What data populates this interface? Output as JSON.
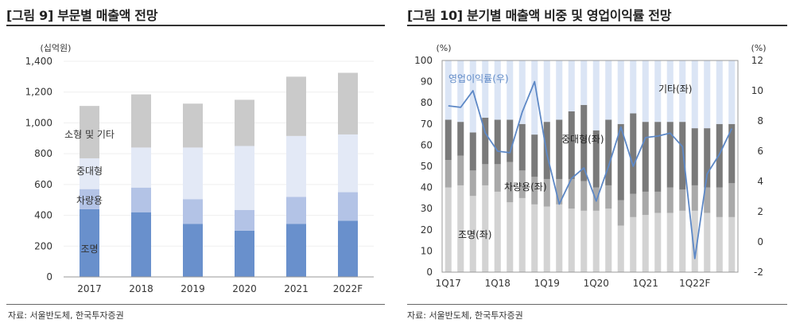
{
  "left_panel": {
    "title": "[그림 9] 부문별 매출액 전망",
    "source": "자료: 서울반도체, 한국투자증권"
  },
  "right_panel": {
    "title": "[그림 10] 분기별 매출액 비중 및 영업이익률 전망",
    "source": "자료: 서울반도체, 한국투자증권"
  },
  "colors": {
    "lighting": "#6990cc",
    "automotive": "#b3c3e6",
    "medium_large": "#e3e9f6",
    "small_other": "#cacaca",
    "r_lighting": "#d3d3d3",
    "r_automotive": "#a9a9a9",
    "r_medium": "#7a7a7a",
    "r_other": "#dbe5f5",
    "r_line": "#5d88c6"
  },
  "chart_data": [
    {
      "type": "bar",
      "stacked": true,
      "title": "[그림 9] 부문별 매출액 전망",
      "yunit": "(십억원)",
      "categories": [
        "2017",
        "2018",
        "2019",
        "2020",
        "2021",
        "2022F"
      ],
      "yticks": [
        "0",
        "200",
        "400",
        "600",
        "800",
        "1,000",
        "1,200",
        "1,400"
      ],
      "ylim": [
        0,
        1400
      ],
      "series": [
        {
          "name": "조명",
          "values": [
            440,
            420,
            345,
            300,
            345,
            365
          ]
        },
        {
          "name": "차량용",
          "values": [
            130,
            160,
            160,
            135,
            175,
            185
          ]
        },
        {
          "name": "중대형",
          "values": [
            200,
            260,
            335,
            415,
            395,
            375
          ]
        },
        {
          "name": "소형 및 기타",
          "values": [
            340,
            345,
            285,
            300,
            385,
            400
          ]
        }
      ],
      "annotations": [
        "소형 및 기타",
        "중대형",
        "차량용",
        "조명"
      ]
    },
    {
      "type": "bar+line",
      "stacked": true,
      "title": "[그림 10] 분기별 매출액 비중 및 영업이익률 전망",
      "left_unit": "(%)",
      "right_unit": "(%)",
      "yticks_left": [
        "0",
        "10",
        "20",
        "30",
        "40",
        "50",
        "60",
        "70",
        "80",
        "90",
        "100"
      ],
      "yticks_right": [
        "-2",
        "0",
        "2",
        "4",
        "6",
        "8",
        "10",
        "12"
      ],
      "ylim_left": [
        0,
        100
      ],
      "ylim_right": [
        -2,
        12
      ],
      "x_labels": [
        "1Q17",
        "1Q18",
        "1Q19",
        "1Q20",
        "1Q21",
        "1Q22F"
      ],
      "quarters": [
        "1Q17",
        "2Q17",
        "3Q17",
        "4Q17",
        "1Q18",
        "2Q18",
        "3Q18",
        "4Q18",
        "1Q19",
        "2Q19",
        "3Q19",
        "4Q19",
        "1Q20",
        "2Q20",
        "3Q20",
        "4Q20",
        "1Q21",
        "2Q21",
        "3Q21",
        "4Q21",
        "1Q22F",
        "2Q22F",
        "3Q22F",
        "4Q22F"
      ],
      "series": [
        {
          "name": "조명",
          "values": [
            40,
            41,
            36,
            41,
            38,
            33,
            35,
            32,
            31,
            32,
            30,
            29,
            29,
            30,
            22,
            26,
            27,
            28,
            28,
            29,
            29,
            28,
            26,
            26
          ]
        },
        {
          "name": "차량용",
          "values": [
            13,
            14,
            12,
            10,
            13,
            19,
            13,
            13,
            13,
            12,
            14,
            14,
            11,
            11,
            12,
            11,
            11,
            10,
            12,
            10,
            12,
            12,
            14,
            16
          ]
        },
        {
          "name": "중대형",
          "values": [
            19,
            16,
            18,
            22,
            21,
            20,
            22,
            20,
            27,
            28,
            32,
            36,
            27,
            31,
            36,
            38,
            33,
            33,
            31,
            32,
            27,
            28,
            30,
            28
          ]
        },
        {
          "name": "기타",
          "values": [
            28,
            29,
            34,
            27,
            28,
            28,
            30,
            35,
            29,
            28,
            24,
            21,
            33,
            28,
            30,
            25,
            29,
            29,
            29,
            29,
            32,
            32,
            30,
            30
          ]
        }
      ],
      "line": {
        "name": "영업이익률(우)",
        "values": [
          9.0,
          8.9,
          10.0,
          7.2,
          6.0,
          5.9,
          8.6,
          10.6,
          5.8,
          2.5,
          4.2,
          4.9,
          2.7,
          5.0,
          7.6,
          5.0,
          6.9,
          7.0,
          7.2,
          6.3,
          -1.1,
          4.5,
          5.8,
          7.5
        ]
      },
      "annotations": [
        "영업이익률(우)",
        "기타(좌)",
        "중대형(좌)",
        "차량용(좌)",
        "조명(좌)"
      ]
    }
  ]
}
